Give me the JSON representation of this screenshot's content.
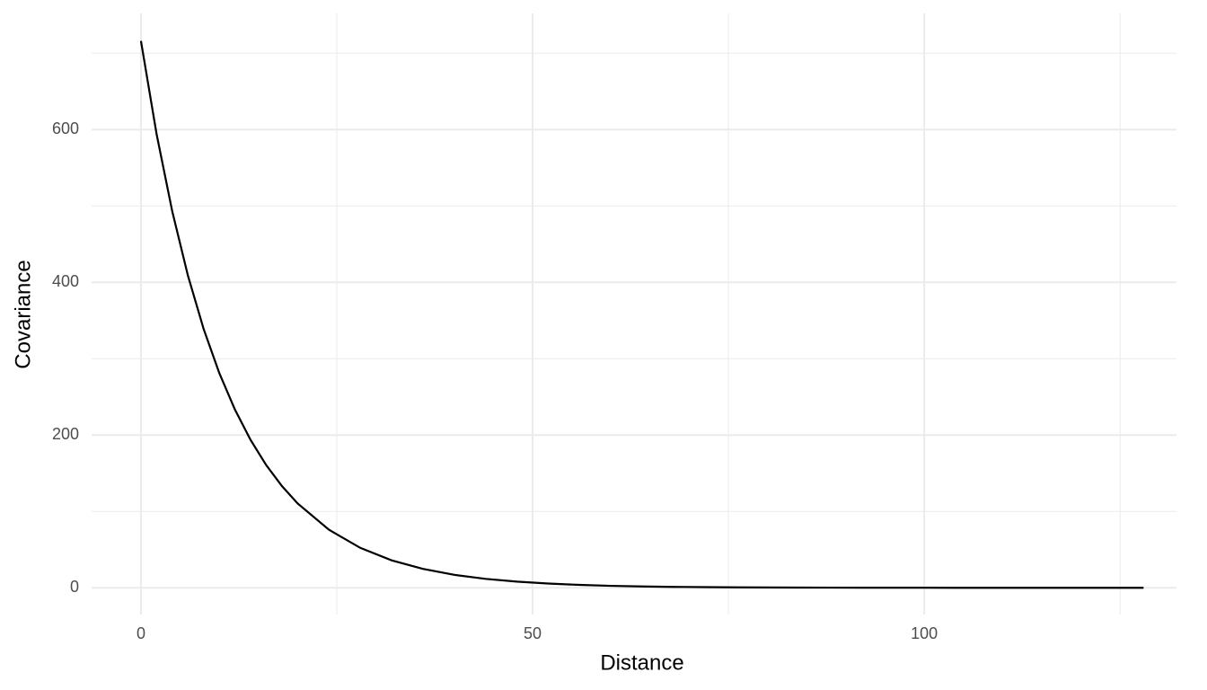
{
  "chart_data": {
    "type": "line",
    "x_label": "Distance",
    "y_label": "Covariance",
    "x": [
      0,
      2,
      4,
      6,
      8,
      10,
      12,
      14,
      16,
      18,
      20,
      24,
      28,
      32,
      36,
      40,
      44,
      48,
      52,
      56,
      60,
      64,
      68,
      72,
      76,
      80,
      84,
      88,
      92,
      96,
      100,
      104,
      108,
      112,
      116,
      120,
      124,
      128
    ],
    "series": [
      {
        "color": "#000000",
        "values": [
          716,
          593.9,
          492.7,
          408.7,
          339.0,
          281.2,
          233.3,
          193.5,
          160.5,
          133.2,
          110.5,
          76.0,
          52.3,
          36.0,
          24.8,
          17.0,
          11.7,
          8.1,
          5.6,
          3.8,
          2.6,
          1.8,
          1.2,
          0.9,
          0.6,
          0.4,
          0.3,
          0.2,
          0.1,
          0.1,
          0.1,
          0,
          0,
          0,
          0,
          0,
          0,
          0
        ]
      }
    ],
    "xlim": [
      -6.3,
      132.2
    ],
    "ylim": [
      -35,
      752
    ],
    "xticks": [
      0,
      50,
      100
    ],
    "yticks": [
      0,
      200,
      400,
      600
    ],
    "x_minor_ticks": [
      25,
      75,
      125
    ],
    "y_minor_ticks": [
      100,
      300,
      500,
      700
    ],
    "grid": true
  }
}
